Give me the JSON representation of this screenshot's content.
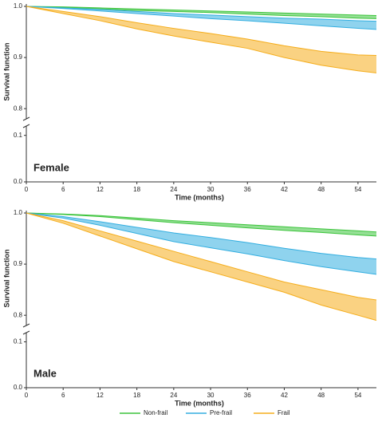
{
  "chart_data": [
    {
      "type": "line",
      "label": "Female",
      "xlabel": "Time (months)",
      "ylabel": "Survival function",
      "x": [
        0,
        6,
        12,
        18,
        24,
        30,
        36,
        42,
        48,
        54,
        57
      ],
      "xlim": [
        0,
        57
      ],
      "xticks": [
        0,
        6,
        12,
        18,
        24,
        30,
        36,
        42,
        48,
        54
      ],
      "ylim": [
        0,
        1
      ],
      "ybreak": [
        0.12,
        0.78
      ],
      "yticks": [
        {
          "value": 0,
          "label": "0.0"
        },
        0.1,
        0.8,
        0.9,
        {
          "value": 1,
          "label": "1.0"
        }
      ],
      "series": [
        {
          "name": "Non-frail",
          "color": "#3cc43c",
          "upper": [
            1,
            0.999,
            0.997,
            0.995,
            0.993,
            0.991,
            0.989,
            0.987,
            0.985,
            0.983,
            0.982
          ],
          "lower": [
            1,
            0.998,
            0.995,
            0.992,
            0.99,
            0.988,
            0.985,
            0.982,
            0.98,
            0.977,
            0.976
          ]
        },
        {
          "name": "Pre-frail",
          "color": "#33aee0",
          "upper": [
            1,
            0.997,
            0.994,
            0.99,
            0.986,
            0.983,
            0.98,
            0.977,
            0.975,
            0.972,
            0.971
          ],
          "lower": [
            1,
            0.996,
            0.991,
            0.986,
            0.981,
            0.976,
            0.972,
            0.967,
            0.962,
            0.957,
            0.955
          ]
        },
        {
          "name": "Frail",
          "color": "#f5ad1b",
          "upper": [
            1,
            0.99,
            0.98,
            0.968,
            0.957,
            0.947,
            0.936,
            0.923,
            0.912,
            0.905,
            0.904
          ],
          "lower": [
            1,
            0.986,
            0.972,
            0.956,
            0.942,
            0.93,
            0.918,
            0.9,
            0.885,
            0.874,
            0.87
          ]
        }
      ]
    },
    {
      "type": "line",
      "label": "Male",
      "xlabel": "Time (months)",
      "ylabel": "Survival function",
      "x": [
        0,
        6,
        12,
        18,
        24,
        30,
        36,
        42,
        48,
        54,
        57
      ],
      "xlim": [
        0,
        57
      ],
      "xticks": [
        0,
        6,
        12,
        18,
        24,
        30,
        36,
        42,
        48,
        54
      ],
      "ylim": [
        0,
        1
      ],
      "ybreak": [
        0.12,
        0.78
      ],
      "yticks": [
        {
          "value": 0,
          "label": "0.0"
        },
        0.1,
        0.8,
        0.9,
        {
          "value": 1,
          "label": "1.0"
        }
      ],
      "series": [
        {
          "name": "Non-frail",
          "color": "#3cc43c",
          "upper": [
            1,
            0.998,
            0.995,
            0.99,
            0.985,
            0.981,
            0.977,
            0.973,
            0.969,
            0.965,
            0.963
          ],
          "lower": [
            1,
            0.997,
            0.993,
            0.987,
            0.981,
            0.976,
            0.971,
            0.966,
            0.962,
            0.957,
            0.955
          ]
        },
        {
          "name": "Pre-frail",
          "color": "#33aee0",
          "upper": [
            1,
            0.993,
            0.983,
            0.972,
            0.961,
            0.952,
            0.942,
            0.931,
            0.921,
            0.913,
            0.91
          ],
          "lower": [
            1,
            0.99,
            0.976,
            0.96,
            0.944,
            0.932,
            0.92,
            0.907,
            0.895,
            0.885,
            0.88
          ]
        },
        {
          "name": "Frail",
          "color": "#f5ad1b",
          "upper": [
            1,
            0.985,
            0.965,
            0.945,
            0.925,
            0.905,
            0.885,
            0.865,
            0.85,
            0.835,
            0.83
          ],
          "lower": [
            1,
            0.98,
            0.955,
            0.93,
            0.905,
            0.885,
            0.865,
            0.845,
            0.82,
            0.8,
            0.79
          ]
        }
      ]
    }
  ]
}
